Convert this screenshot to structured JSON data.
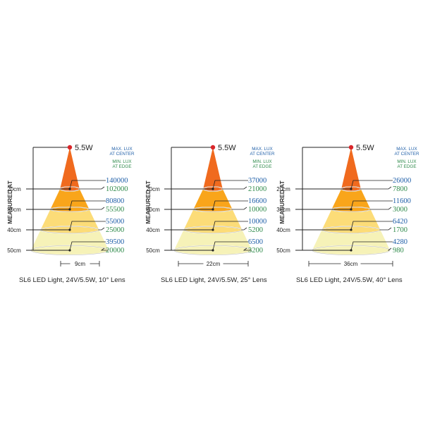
{
  "measured_label": "MEASURED AT",
  "power_label": "5.5W",
  "legend": {
    "center_line1": "MAX. LUX",
    "center_line2": "AT CENTER",
    "edge_line1": "MIN. LUX",
    "edge_line2": "AT EDGE"
  },
  "colors": {
    "center_value": "#1f5fa8",
    "edge_value": "#2e8a4a",
    "band_20": "#f06a1e",
    "band_30": "#f9a51b",
    "band_40": "#fcdc78",
    "band_50": "#f6f2b8",
    "source_dot": "#d9262a",
    "line": "#222222"
  },
  "distances": [
    "20cm",
    "30cm",
    "40cm",
    "50cm"
  ],
  "diagrams": [
    {
      "caption": "SL6 LED Light, 24V/5.5W, 10° Lens",
      "beam_width_label": "9cm",
      "readings": [
        {
          "center": "140000",
          "edge": "102000"
        },
        {
          "center": "80800",
          "edge": "55500"
        },
        {
          "center": "55000",
          "edge": "25000"
        },
        {
          "center": "39500",
          "edge": "20000"
        }
      ]
    },
    {
      "caption": "SL6 LED Light, 24V/5.5W, 25° Lens",
      "beam_width_label": "22cm",
      "readings": [
        {
          "center": "37000",
          "edge": "21000"
        },
        {
          "center": "16600",
          "edge": "10000"
        },
        {
          "center": "10000",
          "edge": "5200"
        },
        {
          "center": "6500",
          "edge": "3200"
        }
      ]
    },
    {
      "caption": "SL6 LED Light, 24V/5.5W, 40° Lens",
      "beam_width_label": "36cm",
      "readings": [
        {
          "center": "26000",
          "edge": "7800"
        },
        {
          "center": "11600",
          "edge": "3000"
        },
        {
          "center": "6420",
          "edge": "1700"
        },
        {
          "center": "4280",
          "edge": "980"
        }
      ]
    }
  ]
}
